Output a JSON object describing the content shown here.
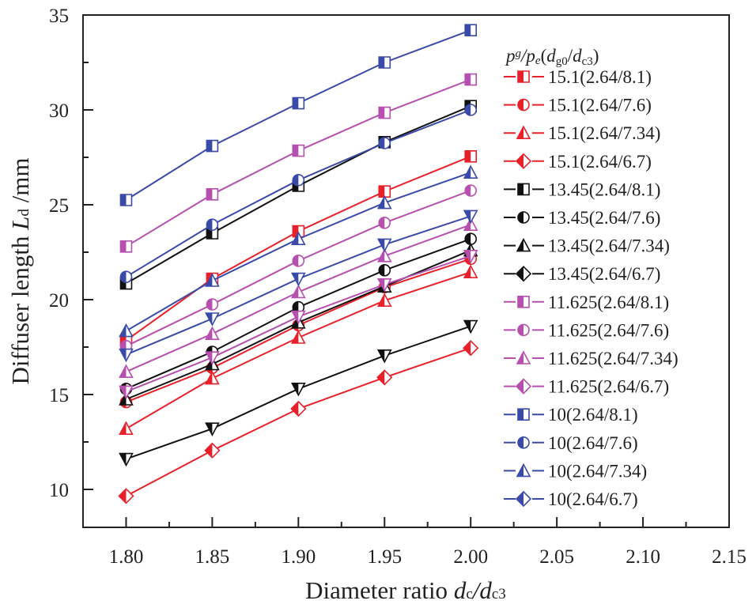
{
  "chart_data": {
    "type": "line",
    "xlabel": {
      "text": "Diameter ratio ",
      "v1": "d",
      "s1": "c",
      "slash": "/",
      "v2": "d",
      "s2": "c3"
    },
    "ylabel": {
      "text": "Diffuser length ",
      "v": "L",
      "s": "d",
      "unit": " /mm"
    },
    "legend_title": {
      "p1": "p",
      "s1": "g",
      "slash1": "/",
      "p2": "p",
      "s2": "e",
      "open": "(",
      "d1": "d",
      "s3": "g0",
      "slash2": "/",
      "d2": "d",
      "s4": "c3",
      "close": ")"
    },
    "legend_position": "top-right",
    "xlim": [
      1.775,
      2.15
    ],
    "ylim": [
      8,
      35
    ],
    "xticks": [
      "1.80",
      "1.85",
      "1.90",
      "1.95",
      "2.00",
      "2.05",
      "2.10",
      "2.15"
    ],
    "yticks": [
      "10",
      "15",
      "20",
      "25",
      "30",
      "35"
    ],
    "grid": false,
    "x": [
      1.8,
      1.85,
      1.9,
      1.95,
      2.0
    ],
    "series": [
      {
        "name": "15.1(2.64/8.1)",
        "color": "#e8202a",
        "marker": "square",
        "values": [
          17.85,
          21.1,
          23.6,
          25.7,
          27.55
        ]
      },
      {
        "name": "15.1(2.64/7.6)",
        "color": "#e8202a",
        "marker": "circle",
        "values": [
          14.6,
          16.4,
          18.65,
          20.65,
          22.15
        ]
      },
      {
        "name": "15.1(2.64/7.34)",
        "color": "#e8202a",
        "marker": "triangle",
        "values": [
          13.2,
          15.85,
          18.0,
          19.95,
          21.45
        ]
      },
      {
        "name": "15.1(2.64/6.7)",
        "color": "#e8202a",
        "marker": "diamond",
        "plot_marker": "diamond",
        "values": [
          9.65,
          12.05,
          14.25,
          15.9,
          17.45
        ]
      },
      {
        "name": "13.45(2.64/8.1)",
        "color": "#111111",
        "marker": "square",
        "values": [
          20.85,
          23.5,
          26.0,
          28.3,
          30.2
        ]
      },
      {
        "name": "13.45(2.64/7.6)",
        "color": "#111111",
        "marker": "circle",
        "values": [
          15.3,
          17.25,
          19.6,
          21.55,
          23.2
        ]
      },
      {
        "name": "13.45(2.64/7.34)",
        "color": "#111111",
        "marker": "triangle",
        "values": [
          14.75,
          16.6,
          18.8,
          20.7,
          22.6
        ]
      },
      {
        "name": "13.45(2.64/6.7)",
        "color": "#111111",
        "marker": "diamond",
        "plot_marker": "down-triangle",
        "values": [
          11.6,
          13.2,
          15.3,
          17.05,
          18.6
        ]
      },
      {
        "name": "11.625(2.64/8.1)",
        "color": "#b64fae",
        "marker": "square",
        "values": [
          22.8,
          25.55,
          27.85,
          29.85,
          31.6
        ]
      },
      {
        "name": "11.625(2.64/7.6)",
        "color": "#b64fae",
        "marker": "circle",
        "values": [
          17.55,
          19.75,
          22.05,
          24.05,
          25.75
        ]
      },
      {
        "name": "11.625(2.64/7.34)",
        "color": "#b64fae",
        "marker": "triangle",
        "values": [
          16.2,
          18.2,
          20.4,
          22.3,
          23.95
        ]
      },
      {
        "name": "11.625(2.64/6.7)",
        "color": "#b64fae",
        "marker": "diamond",
        "plot_marker": "down-triangle",
        "values": [
          15.15,
          16.95,
          19.1,
          20.8,
          22.3
        ]
      },
      {
        "name": "10(2.64/8.1)",
        "color": "#3a4aa8",
        "marker": "square",
        "values": [
          25.25,
          28.1,
          30.35,
          32.5,
          34.2
        ]
      },
      {
        "name": "10(2.64/7.6)",
        "color": "#3a4aa8",
        "marker": "circle",
        "values": [
          21.2,
          23.95,
          26.3,
          28.25,
          30.0
        ]
      },
      {
        "name": "10(2.64/7.34)",
        "color": "#3a4aa8",
        "marker": "triangle",
        "values": [
          18.35,
          21.0,
          23.2,
          25.1,
          26.7
        ]
      },
      {
        "name": "10(2.64/6.7)",
        "color": "#3a4aa8",
        "marker": "diamond",
        "plot_marker": "down-triangle",
        "values": [
          17.1,
          19.0,
          21.1,
          22.9,
          24.4
        ]
      }
    ]
  }
}
